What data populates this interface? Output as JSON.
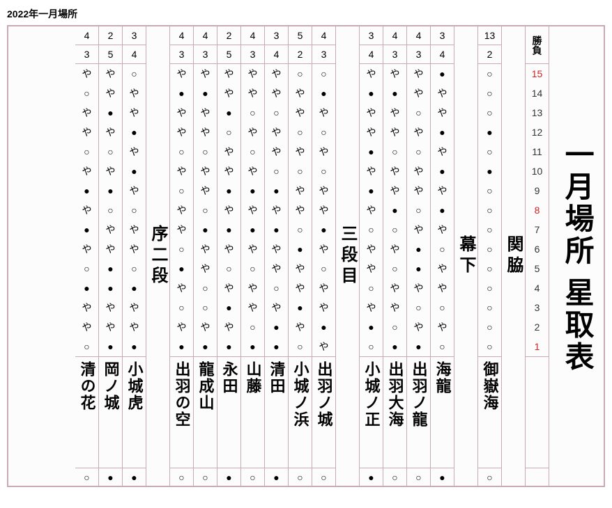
{
  "page_title": "2022年一月場所",
  "main_title": "一月場所 星取表",
  "shobu_label": "勝負",
  "days": [
    15,
    14,
    13,
    12,
    11,
    10,
    9,
    8,
    7,
    6,
    5,
    4,
    3,
    2,
    1
  ],
  "day_highlight": {
    "first": 1,
    "mid": 8,
    "last": 15
  },
  "symbols": {
    "win": "○",
    "loss": "●",
    "rest": "や"
  },
  "colors": {
    "border": "#c9aab0",
    "text": "#000000",
    "highlight_day": "#d02020",
    "background": "#fdfcfd"
  },
  "groups": [
    {
      "division": "関脇",
      "rikishi": [
        {
          "name": "御嶽海",
          "wins": 13,
          "losses": 2,
          "results": [
            "○",
            "○",
            "○",
            "●",
            "○",
            "●",
            "○",
            "○",
            "○",
            "○",
            "○",
            "○",
            "○",
            "○",
            "○"
          ],
          "promo": "○"
        }
      ]
    },
    {
      "division": "幕下",
      "rikishi": [
        {
          "name": "海龍",
          "wins": 3,
          "losses": 4,
          "results": [
            "●",
            "や",
            "や",
            "●",
            "や",
            "●",
            "や",
            "●",
            "や",
            "○",
            "や",
            "や",
            "○",
            "や",
            "○"
          ],
          "promo": "●"
        },
        {
          "name": "出羽ノ龍",
          "wins": 4,
          "losses": 3,
          "results": [
            "や",
            "や",
            "○",
            "や",
            "○",
            "や",
            "や",
            "○",
            "や",
            "●",
            "●",
            "や",
            "○",
            "や",
            "●"
          ],
          "promo": "○"
        },
        {
          "name": "出羽大海",
          "wins": 4,
          "losses": 3,
          "results": [
            "や",
            "●",
            "や",
            "や",
            "○",
            "や",
            "や",
            "●",
            "○",
            "や",
            "○",
            "や",
            "や",
            "○",
            "●"
          ],
          "promo": "○"
        },
        {
          "name": "小城ノ正",
          "wins": 3,
          "losses": 4,
          "results": [
            "や",
            "●",
            "や",
            "や",
            "●",
            "や",
            "●",
            "や",
            "○",
            "や",
            "や",
            "○",
            "や",
            "●",
            "○"
          ],
          "promo": "●"
        }
      ]
    },
    {
      "division": "三段目",
      "rikishi": [
        {
          "name": "出羽ノ城",
          "wins": 4,
          "losses": 3,
          "results": [
            "○",
            "●",
            "や",
            "○",
            "や",
            "○",
            "や",
            "や",
            "●",
            "や",
            "○",
            "や",
            "や",
            "●",
            "や"
          ],
          "promo": "○"
        },
        {
          "name": "小城ノ浜",
          "wins": 5,
          "losses": 2,
          "results": [
            "○",
            "や",
            "や",
            "○",
            "や",
            "○",
            "や",
            "や",
            "○",
            "●",
            "や",
            "や",
            "●",
            "や",
            "○"
          ],
          "promo": "○"
        },
        {
          "name": "清田",
          "wins": 3,
          "losses": 4,
          "results": [
            "や",
            "や",
            "○",
            "や",
            "や",
            "○",
            "●",
            "や",
            "●",
            "や",
            "や",
            "○",
            "や",
            "●",
            "●"
          ],
          "promo": "●"
        },
        {
          "name": "山藤",
          "wins": 4,
          "losses": 3,
          "results": [
            "や",
            "や",
            "○",
            "や",
            "○",
            "や",
            "●",
            "や",
            "●",
            "や",
            "○",
            "や",
            "や",
            "○",
            "●"
          ],
          "promo": "○"
        },
        {
          "name": "永田",
          "wins": 2,
          "losses": 5,
          "results": [
            "や",
            "や",
            "●",
            "○",
            "や",
            "や",
            "●",
            "や",
            "●",
            "や",
            "○",
            "や",
            "●",
            "や",
            "●"
          ],
          "promo": "●"
        },
        {
          "name": "龍成山",
          "wins": 4,
          "losses": 3,
          "results": [
            "や",
            "●",
            "や",
            "や",
            "○",
            "や",
            "や",
            "○",
            "●",
            "や",
            "や",
            "○",
            "○",
            "や",
            "●"
          ],
          "promo": "○"
        },
        {
          "name": "出羽の空",
          "wins": 4,
          "losses": 3,
          "results": [
            "や",
            "●",
            "や",
            "や",
            "○",
            "や",
            "○",
            "や",
            "や",
            "○",
            "●",
            "や",
            "○",
            "や",
            "●"
          ],
          "promo": "○"
        }
      ]
    },
    {
      "division": "序二段",
      "rikishi": [
        {
          "name": "小城虎",
          "wins": 3,
          "losses": 4,
          "results": [
            "○",
            "や",
            "や",
            "●",
            "や",
            "●",
            "や",
            "○",
            "や",
            "や",
            "○",
            "●",
            "や",
            "や",
            "●"
          ],
          "promo": "●"
        },
        {
          "name": "岡ノ城",
          "wins": 2,
          "losses": 5,
          "results": [
            "や",
            "や",
            "●",
            "や",
            "○",
            "や",
            "●",
            "○",
            "や",
            "や",
            "●",
            "●",
            "や",
            "や",
            "●"
          ],
          "promo": "●"
        },
        {
          "name": "清の花",
          "wins": 4,
          "losses": 3,
          "results": [
            "や",
            "○",
            "や",
            "や",
            "○",
            "や",
            "●",
            "や",
            "●",
            "や",
            "○",
            "●",
            "や",
            "や",
            "○"
          ],
          "promo": "○"
        }
      ]
    }
  ]
}
